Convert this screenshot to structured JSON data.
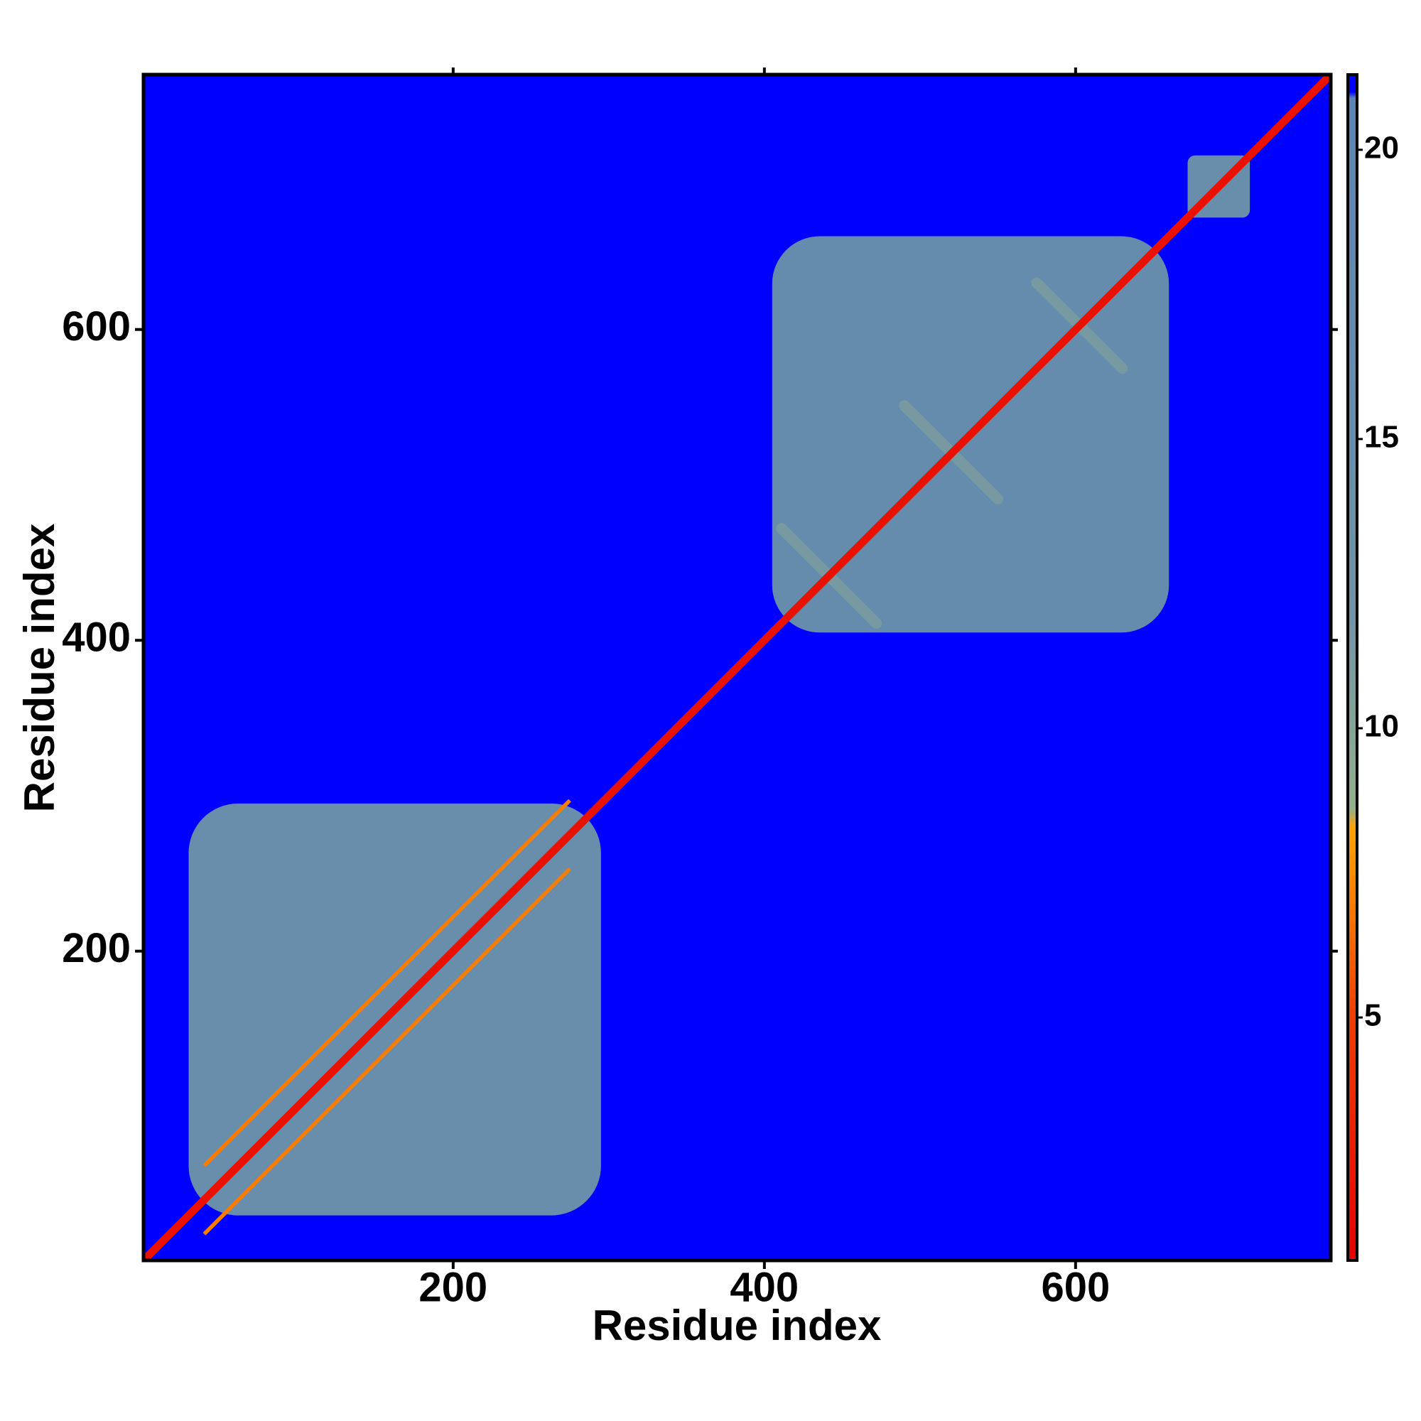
{
  "chart_data": {
    "type": "heatmap",
    "xlabel": "Residue index",
    "ylabel": "Residue index",
    "xlim": [
      1,
      764
    ],
    "ylim": [
      1,
      764
    ],
    "xticks": [
      200,
      400,
      600
    ],
    "yticks": [
      200,
      400,
      600
    ],
    "background": 21,
    "domains": [
      {
        "range": [
          30,
          295
        ],
        "value": 15
      },
      {
        "range": [
          405,
          660
        ],
        "value": 16
      },
      {
        "range": [
          672,
          712
        ],
        "value": 15
      }
    ],
    "diagonals": [
      {
        "offset": 0,
        "range": [
          1,
          764
        ],
        "value": 2
      },
      {
        "offset": 22,
        "range": [
          40,
          275
        ],
        "value": 7
      },
      {
        "offset": -22,
        "range": [
          40,
          275
        ],
        "value": 7
      }
    ],
    "antidiagonals": [
      {
        "sum": 883,
        "range": [
          411,
          472
        ],
        "value": 11
      },
      {
        "sum": 1041,
        "range": [
          490,
          550
        ],
        "value": 11
      },
      {
        "sum": 1205,
        "range": [
          575,
          630
        ],
        "value": 11
      }
    ],
    "colorbar": {
      "lim": [
        0.8,
        21.3
      ],
      "ticks": [
        5,
        10,
        15,
        20
      ],
      "stops": [
        {
          "value": 0.8,
          "color": "#e60000"
        },
        {
          "value": 5,
          "color": "#f03c00"
        },
        {
          "value": 8.3,
          "color": "#ffa500"
        },
        {
          "value": 8.6,
          "color": "#93b08a"
        },
        {
          "value": 12,
          "color": "#6f93a8"
        },
        {
          "value": 20.9,
          "color": "#5b84b4"
        },
        {
          "value": 21,
          "color": "#0000ff"
        },
        {
          "value": 21.3,
          "color": "#0000ff"
        }
      ]
    }
  }
}
